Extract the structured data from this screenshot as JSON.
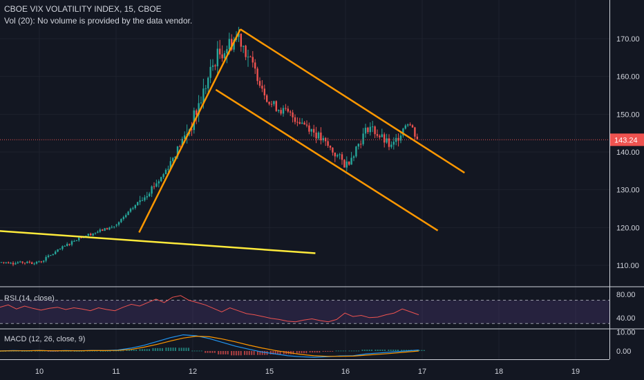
{
  "header": {
    "title": "CBOE VIX VOLATILITY INDEX, 15, CBOE",
    "volume_note": "Vol (20): No volume is provided by the data vendor."
  },
  "indicators": {
    "rsi_label": "RSI (14, close)",
    "macd_label": "MACD (12, 26, close, 9)"
  },
  "colors": {
    "background": "#131722",
    "up": "#26a69a",
    "down": "#ef5350",
    "channel": "#ff9800",
    "support": "#ffeb3b",
    "rsi": "#ef5350",
    "rsi_band": "#7e57c2",
    "macd": "#2196f3",
    "signal": "#ff9800"
  },
  "chart_data": [
    {
      "type": "candlestick",
      "title": "CBOE VIX VOLATILITY INDEX, 15, CBOE",
      "x_ticks": [
        "10",
        "11",
        "12",
        "15",
        "16",
        "17",
        "18",
        "19"
      ],
      "y_ticks": [
        110,
        120,
        130,
        140,
        150,
        160,
        170
      ],
      "ylim": [
        103,
        177
      ],
      "last_price": 143.24,
      "last_price_label": "143.24",
      "ohlc_anchors": [
        {
          "x": "10",
          "price": 110.8
        },
        {
          "x": "10.5",
          "price": 117.2
        },
        {
          "x": "11",
          "price": 120.5
        },
        {
          "x": "11.6",
          "price": 133.5
        },
        {
          "x": "12",
          "price": 148
        },
        {
          "x": "12.3",
          "price": 165
        },
        {
          "x": "12.6",
          "price": 171
        },
        {
          "x": "15",
          "price": 153
        },
        {
          "x": "15.5",
          "price": 147
        },
        {
          "x": "16",
          "price": 136.5
        },
        {
          "x": "16.3",
          "price": 147
        },
        {
          "x": "16.6",
          "price": 141
        },
        {
          "x": "16.8",
          "price": 148.5
        },
        {
          "x": "16.95",
          "price": 143.2
        }
      ],
      "trendlines": [
        {
          "name": "support",
          "points": [
            {
              "x": "9.4",
              "price": 119.2
            },
            {
              "x": "15.6",
              "price": 113.2
            }
          ]
        },
        {
          "name": "rise",
          "points": [
            {
              "x": "11.3",
              "price": 118.7
            },
            {
              "x": "12.62",
              "price": 172.5
            }
          ]
        },
        {
          "name": "channel-upper",
          "points": [
            {
              "x": "12.62",
              "price": 172.5
            },
            {
              "x": "17.55",
              "price": 134.5
            }
          ]
        },
        {
          "name": "channel-lower",
          "points": [
            {
              "x": "12.3",
              "price": 156.5
            },
            {
              "x": "17.2",
              "price": 119.2
            }
          ]
        }
      ]
    },
    {
      "type": "line",
      "name": "RSI",
      "title": "RSI (14, close)",
      "y_ticks": [
        40,
        80
      ],
      "y_tick_labels": [
        "40.00",
        "80.00"
      ],
      "bands": [
        30,
        70
      ],
      "ylim": [
        22,
        92
      ],
      "values": [
        58,
        62,
        55,
        60,
        56,
        53,
        56,
        58,
        54,
        57,
        55,
        52,
        57,
        54,
        52,
        58,
        63,
        60,
        66,
        72,
        66,
        75,
        78,
        70,
        66,
        62,
        56,
        50,
        57,
        52,
        47,
        45,
        42,
        39,
        37,
        34,
        33,
        36,
        38,
        35,
        33,
        37,
        48,
        42,
        44,
        40,
        41,
        45,
        48,
        55,
        50,
        45
      ]
    },
    {
      "type": "line",
      "name": "MACD",
      "title": "MACD (12, 26, close, 9)",
      "y_ticks": [
        0,
        10
      ],
      "y_tick_labels": [
        "0.00",
        "10.00"
      ],
      "ylim": [
        -5,
        12
      ],
      "macd": [
        0,
        0.2,
        0.1,
        0.3,
        0,
        0.2,
        0.1,
        0.3,
        0.2,
        0.5,
        1.5,
        3,
        5,
        7,
        8.5,
        8,
        6.5,
        4.5,
        2.5,
        1,
        -0.5,
        -1.5,
        -2.5,
        -3,
        -3.3,
        -3,
        -2.6,
        -2.5,
        -1.5,
        -1,
        -0.5,
        0,
        0.5
      ],
      "signal": [
        0,
        0.1,
        0.1,
        0.2,
        0.1,
        0.15,
        0.1,
        0.2,
        0.2,
        0.3,
        0.8,
        2,
        3.5,
        5.2,
        6.8,
        7.8,
        7.5,
        6.3,
        4.8,
        3.1,
        1.6,
        0.3,
        -0.8,
        -1.8,
        -2.5,
        -2.8,
        -2.8,
        -2.7,
        -2.2,
        -1.7,
        -1.2,
        -0.6,
        0
      ]
    }
  ]
}
